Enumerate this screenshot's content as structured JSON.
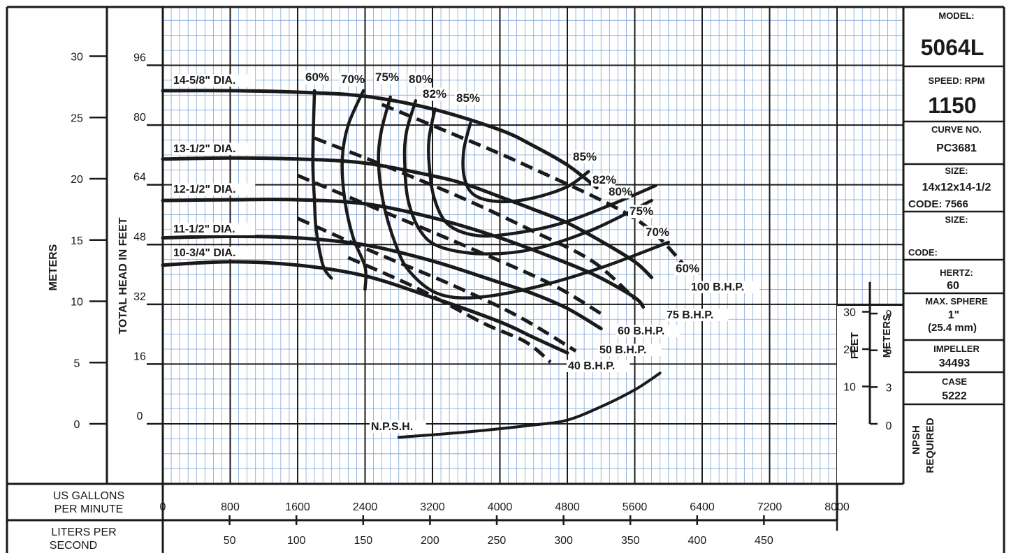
{
  "info_panel": {
    "model_label": "MODEL:",
    "model_value": "5064L",
    "speed_label": "SPEED: RPM",
    "speed_value": "1150",
    "curve_label": "CURVE NO.",
    "curve_value": "PC3681",
    "size_label": "SIZE:",
    "size_value": "14x12x14-1/2",
    "code_label": "CODE: 7566",
    "size2_label": "SIZE:",
    "code2_label": "CODE:",
    "hertz_label": "HERTZ:",
    "hertz_value": "60",
    "sphere_label": "MAX. SPHERE",
    "sphere_value": "1\"",
    "sphere_metric": "(25.4 mm)",
    "impeller_label": "IMPELLER",
    "impeller_value": "34493",
    "case_label": "CASE",
    "case_value": "5222"
  },
  "axis_titles": {
    "meters": "METERS",
    "head_feet": "TOTAL HEAD IN FEET",
    "gpm_line1": "US GALLONS",
    "gpm_line2": "PER MINUTE",
    "lps_line1": "LITERS PER",
    "lps_line2": "SECOND",
    "npsh_feet": "FEET",
    "npsh_meters": "METERS",
    "npsh_line1": "NPSH",
    "npsh_line2": "REQUIRED"
  },
  "chart_data": {
    "type": "line",
    "x_axis": {
      "label": "US GALLONS PER MINUTE",
      "range": [
        0,
        8000
      ],
      "ticks": [
        "0",
        "800",
        "1600",
        "2400",
        "3200",
        "4000",
        "4800",
        "5600",
        "6400",
        "7200",
        "8000"
      ]
    },
    "x_axis_secondary": {
      "label": "LITERS PER SECOND",
      "ticks": [
        "50",
        "100",
        "150",
        "200",
        "250",
        "300",
        "350",
        "400",
        "450"
      ],
      "values": [
        50,
        100,
        150,
        200,
        250,
        300,
        350,
        400,
        450
      ]
    },
    "y_axis": {
      "label": "TOTAL HEAD IN FEET",
      "range": [
        -16,
        112
      ],
      "ticks": [
        "0",
        "16",
        "32",
        "48",
        "64",
        "80",
        "96"
      ],
      "values": [
        0,
        16,
        32,
        48,
        64,
        80,
        96
      ]
    },
    "y_axis_secondary": {
      "label": "METERS",
      "ticks": [
        "0",
        "5",
        "10",
        "15",
        "20",
        "25",
        "30"
      ],
      "values": [
        0,
        5,
        10,
        15,
        20,
        25,
        30
      ]
    },
    "npsh_axis": {
      "feet_ticks": [
        "10",
        "20",
        "30"
      ],
      "feet_values": [
        10,
        20,
        30
      ],
      "meter_ticks": [
        "0",
        "3",
        "6",
        "9"
      ],
      "meter_values": [
        0,
        3,
        6,
        9
      ]
    },
    "grid": true,
    "head_curves": [
      {
        "name": "14-5/8\" DIA.",
        "points": [
          [
            0,
            89.2
          ],
          [
            800,
            89.2
          ],
          [
            1600,
            88.8
          ],
          [
            2400,
            87.7
          ],
          [
            3200,
            84.3
          ],
          [
            4000,
            78.7
          ],
          [
            4400,
            74.4
          ],
          [
            4800,
            69.3
          ],
          [
            5150,
            63.2
          ]
        ]
      },
      {
        "name": "13-1/2\" DIA.",
        "points": [
          [
            0,
            70.9
          ],
          [
            800,
            71.2
          ],
          [
            1600,
            70.9
          ],
          [
            2400,
            69.8
          ],
          [
            3200,
            66.4
          ],
          [
            3600,
            64.1
          ],
          [
            4000,
            60.8
          ],
          [
            4400,
            57.4
          ],
          [
            4800,
            53.8
          ],
          [
            5200,
            48.9
          ],
          [
            5600,
            43.4
          ],
          [
            5800,
            39.2
          ]
        ]
      },
      {
        "name": "12-1/2\" DIA.",
        "points": [
          [
            0,
            59.8
          ],
          [
            800,
            60.0
          ],
          [
            1600,
            60.0
          ],
          [
            2400,
            58.9
          ],
          [
            3200,
            55.2
          ],
          [
            4000,
            49.8
          ],
          [
            4800,
            43.0
          ],
          [
            5200,
            39.0
          ],
          [
            5600,
            33.8
          ],
          [
            5700,
            31.3
          ]
        ]
      },
      {
        "name": "11-1/2\" DIA.",
        "points": [
          [
            0,
            49.8
          ],
          [
            800,
            50.2
          ],
          [
            1600,
            49.8
          ],
          [
            2400,
            47.9
          ],
          [
            3200,
            43.6
          ],
          [
            4000,
            37.8
          ],
          [
            4400,
            34.8
          ],
          [
            4800,
            30.9
          ],
          [
            5200,
            25.5
          ]
        ]
      },
      {
        "name": "10-3/4\" DIA.",
        "points": [
          [
            0,
            42.5
          ],
          [
            800,
            43.4
          ],
          [
            1600,
            42.5
          ],
          [
            2400,
            39.6
          ],
          [
            3200,
            33.8
          ],
          [
            4000,
            27.3
          ],
          [
            4400,
            23.1
          ],
          [
            4800,
            19.0
          ]
        ]
      }
    ],
    "efficiency_curves": [
      {
        "name": "60%",
        "points": [
          [
            1800,
            89.2
          ],
          [
            1780,
            70.9
          ],
          [
            1800,
            59.8
          ],
          [
            1820,
            52
          ],
          [
            1900,
            42.5
          ],
          [
            2000,
            39
          ]
        ]
      },
      {
        "name": "70%",
        "points": [
          [
            2380,
            89.2
          ],
          [
            2200,
            80
          ],
          [
            2130,
            70.9
          ],
          [
            2160,
            59.8
          ],
          [
            2260,
            49.8
          ],
          [
            2400,
            42
          ],
          [
            2400,
            36
          ]
        ]
      },
      {
        "name": "75%",
        "points": [
          [
            2700,
            87.5
          ],
          [
            2590,
            78
          ],
          [
            2560,
            69.8
          ],
          [
            2620,
            58.9
          ],
          [
            2760,
            48.2
          ],
          [
            2920,
            41
          ],
          [
            3250,
            35
          ],
          [
            3700,
            33.8
          ],
          [
            4400,
            36.5
          ],
          [
            5200,
            41.8
          ],
          [
            6000,
            48.6
          ]
        ]
      },
      {
        "name": "80%",
        "points": [
          [
            3000,
            86.5
          ],
          [
            2890,
            78
          ],
          [
            2870,
            70.5
          ],
          [
            2910,
            60
          ],
          [
            3060,
            51.5
          ],
          [
            3300,
            47.3
          ],
          [
            3800,
            45.5
          ],
          [
            4400,
            46.8
          ],
          [
            5100,
            52
          ],
          [
            5800,
            59.8
          ]
        ]
      },
      {
        "name": "82%",
        "points": [
          [
            3230,
            84.3
          ],
          [
            3160,
            76.5
          ],
          [
            3160,
            69.5
          ],
          [
            3220,
            60.5
          ],
          [
            3380,
            53.5
          ],
          [
            3700,
            50.5
          ],
          [
            4100,
            50.8
          ],
          [
            4700,
            53.5
          ],
          [
            5300,
            58.5
          ],
          [
            5850,
            63.8
          ]
        ]
      },
      {
        "name": "85%",
        "points": [
          [
            3650,
            80.5
          ],
          [
            3570,
            73
          ],
          [
            3580,
            65.8
          ],
          [
            3700,
            61.2
          ],
          [
            4000,
            59.5
          ],
          [
            4400,
            60.5
          ],
          [
            4800,
            63.5
          ],
          [
            5050,
            67.5
          ]
        ]
      }
    ],
    "bhp_curves": [
      {
        "name": "100 B.H.P.",
        "points": [
          [
            2600,
            85.5
          ],
          [
            3400,
            78
          ],
          [
            4300,
            69.3
          ],
          [
            5600,
            55
          ],
          [
            6200,
            42.2
          ]
        ]
      },
      {
        "name": "75 B.H.P.",
        "points": [
          [
            1800,
            76.5
          ],
          [
            2700,
            68.5
          ],
          [
            3600,
            60
          ],
          [
            4400,
            51.5
          ],
          [
            5100,
            43.5
          ],
          [
            5600,
            33.5
          ]
        ]
      },
      {
        "name": "60 B.H.P.",
        "points": [
          [
            1600,
            66.5
          ],
          [
            2600,
            57
          ],
          [
            3600,
            47.5
          ],
          [
            4600,
            37.5
          ],
          [
            5200,
            29.5
          ]
        ]
      },
      {
        "name": "50 B.H.P.",
        "points": [
          [
            1600,
            55
          ],
          [
            2500,
            46
          ],
          [
            3400,
            37.5
          ],
          [
            4200,
            29
          ],
          [
            4900,
            19.5
          ]
        ]
      },
      {
        "name": "40 B.H.P.",
        "points": [
          [
            2200,
            44.5
          ],
          [
            3000,
            36.5
          ],
          [
            3800,
            27
          ],
          [
            4300,
            22
          ],
          [
            4600,
            16.5
          ]
        ]
      }
    ],
    "npsh_curve": {
      "name": "N.P.S.H.",
      "points": [
        [
          2800,
          -3.6
        ],
        [
          3600,
          -2.2
        ],
        [
          4400,
          -0.3
        ],
        [
          4800,
          1.0
        ],
        [
          5200,
          4.6
        ],
        [
          5600,
          9.1
        ],
        [
          5900,
          13.6
        ]
      ]
    }
  }
}
